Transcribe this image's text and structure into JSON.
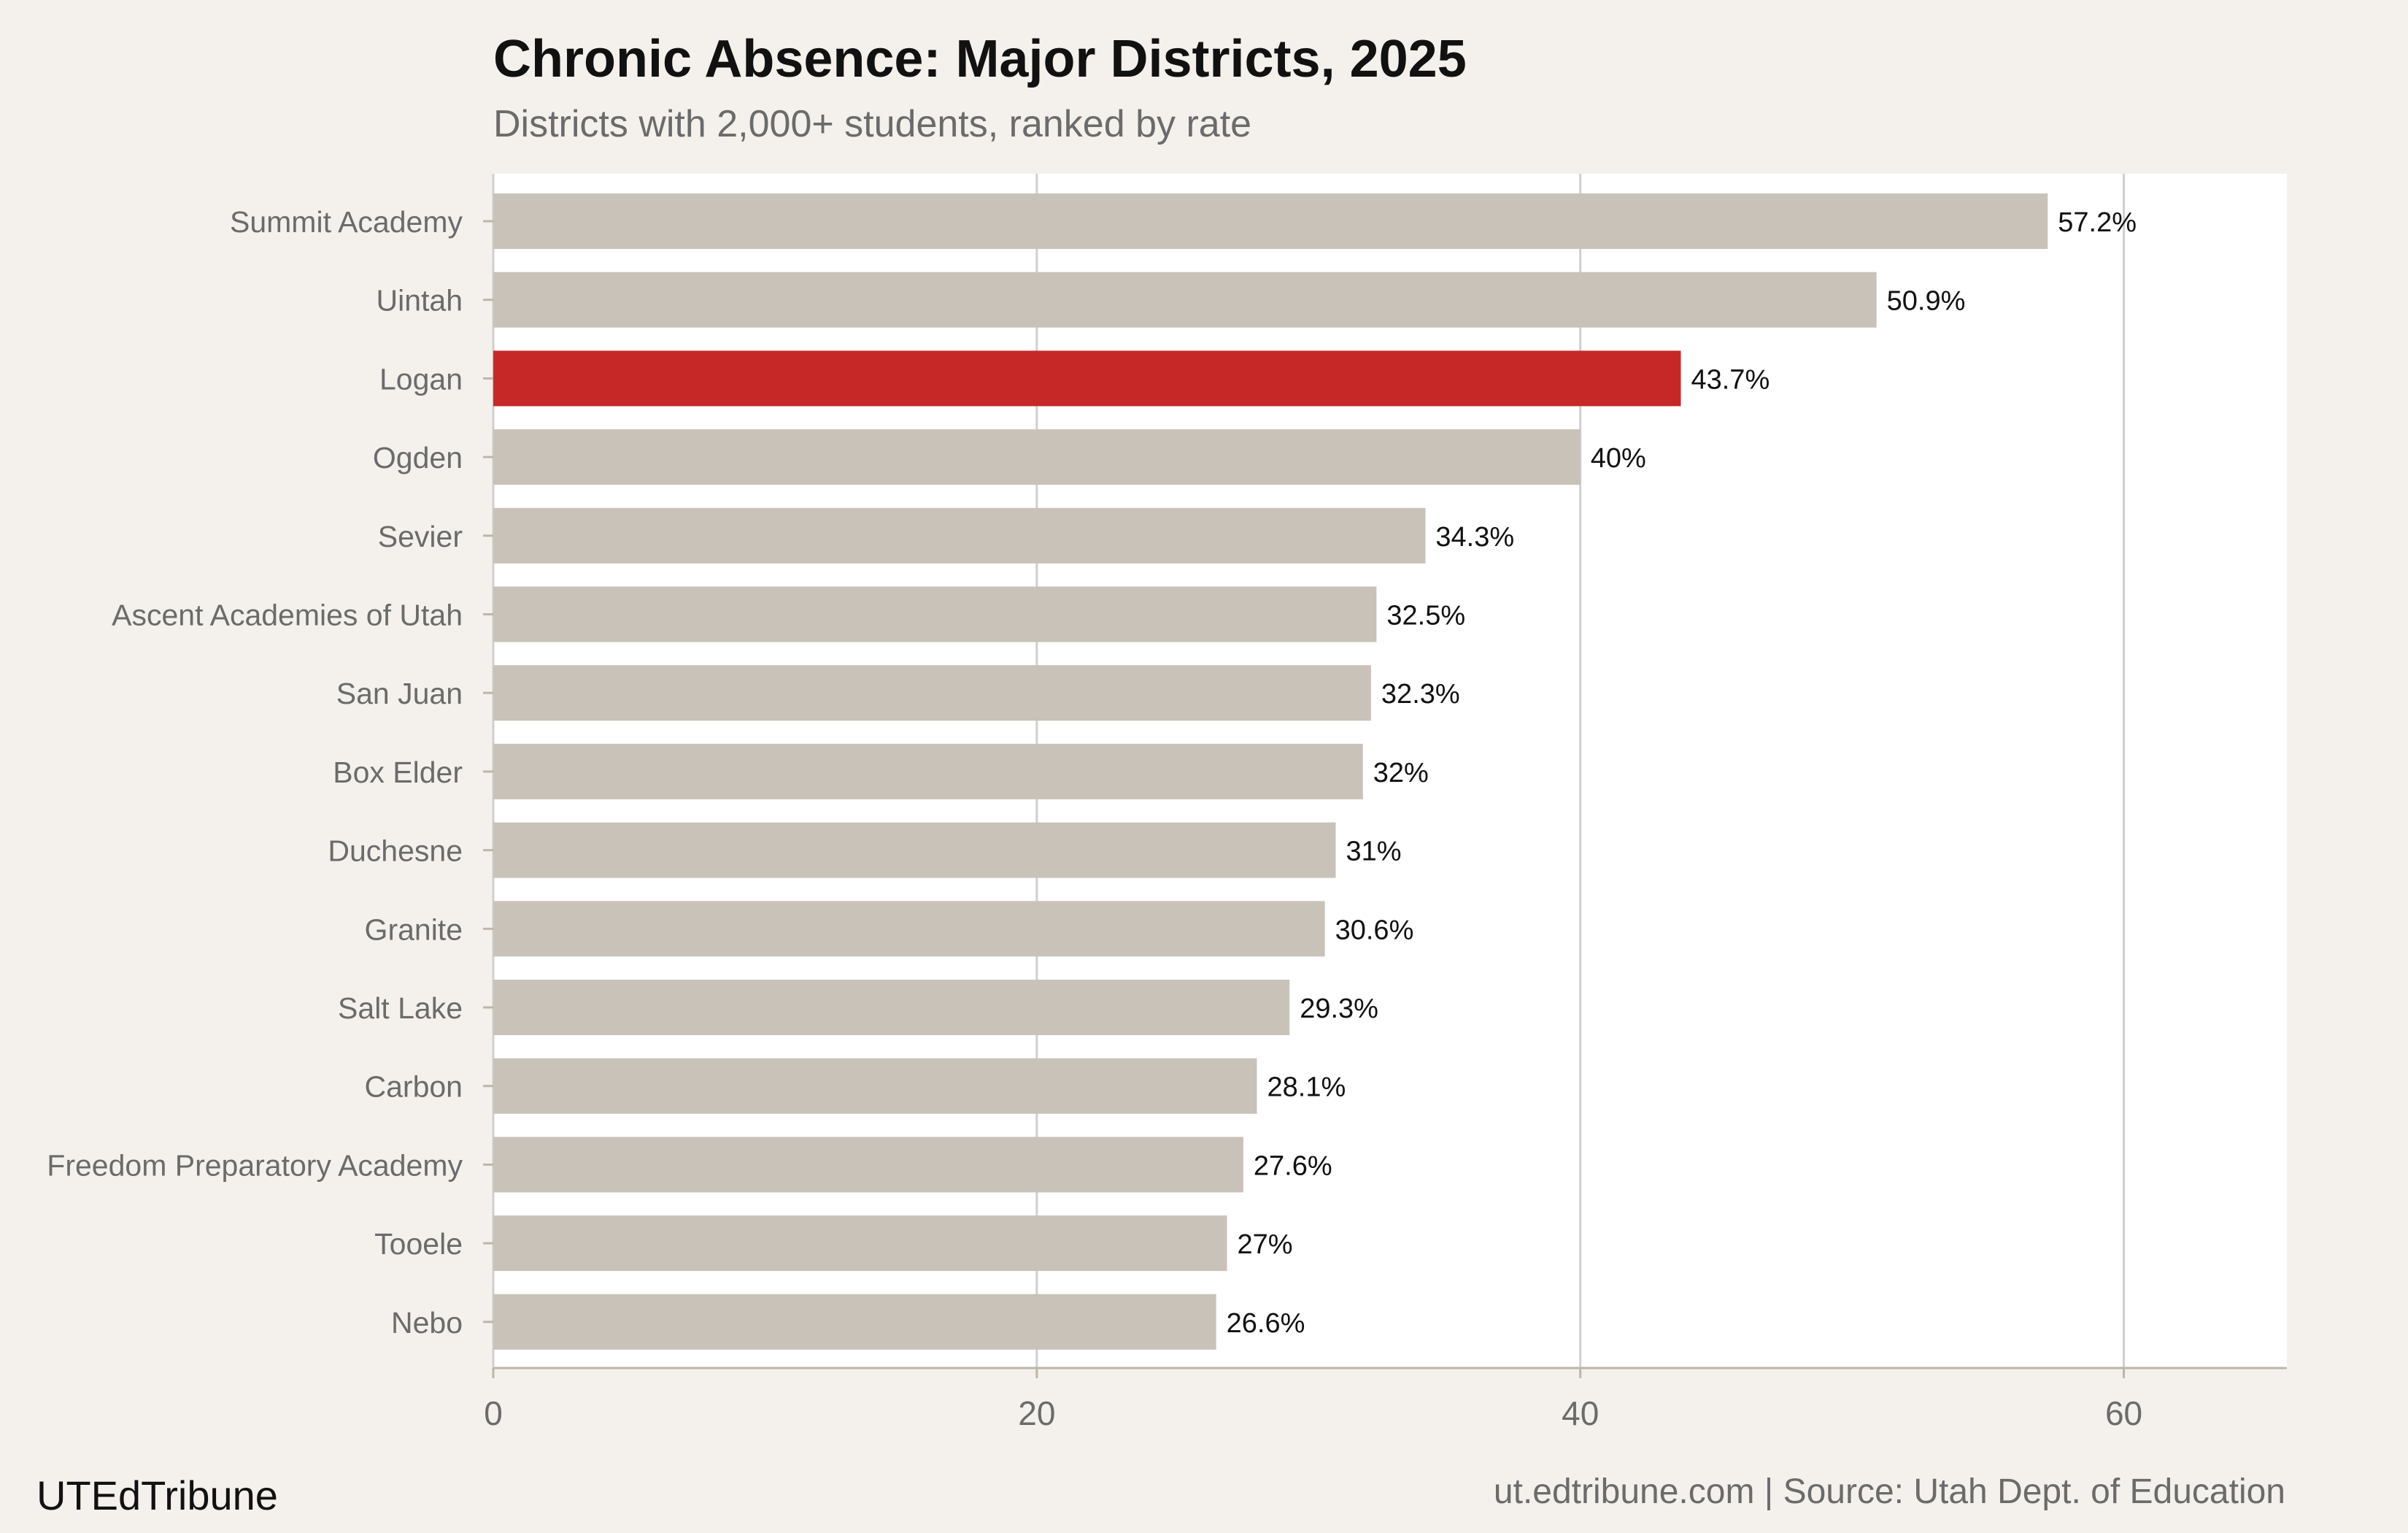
{
  "header": {
    "title": "Chronic Absence: Major Districts, 2025",
    "subtitle": "Districts with 2,000+ students, ranked by rate"
  },
  "footer": {
    "brand": "UTEdTribune",
    "source": "ut.edtribune.com | Source: Utah Dept. of Education"
  },
  "colors": {
    "background": "#f4f1ec",
    "plot_background": "#ffffff",
    "bar_default": "#c9c2b8",
    "bar_highlight": "#c62828",
    "grid": "#cfcfcf"
  },
  "chart_data": {
    "type": "bar",
    "orientation": "horizontal",
    "title": "Chronic Absence: Major Districts, 2025",
    "subtitle": "Districts with 2,000+ students, ranked by rate",
    "xlabel": "",
    "ylabel": "",
    "xlim": [
      0,
      66
    ],
    "xticks": [
      0,
      20,
      40,
      60
    ],
    "grid": "vertical",
    "highlight": "Logan",
    "categories": [
      "Summit Academy",
      "Uintah",
      "Logan",
      "Ogden",
      "Sevier",
      "Ascent Academies of Utah",
      "San Juan",
      "Box Elder",
      "Duchesne",
      "Granite",
      "Salt Lake",
      "Carbon",
      "Freedom Preparatory Academy",
      "Tooele",
      "Nebo"
    ],
    "values": [
      57.2,
      50.9,
      43.7,
      40,
      34.3,
      32.5,
      32.3,
      32,
      31,
      30.6,
      29.3,
      28.1,
      27.6,
      27,
      26.6
    ],
    "labels": [
      "57.2%",
      "50.9%",
      "43.7%",
      "40%",
      "34.3%",
      "32.5%",
      "32.3%",
      "32%",
      "31%",
      "30.6%",
      "29.3%",
      "28.1%",
      "27.6%",
      "27%",
      "26.6%"
    ]
  }
}
